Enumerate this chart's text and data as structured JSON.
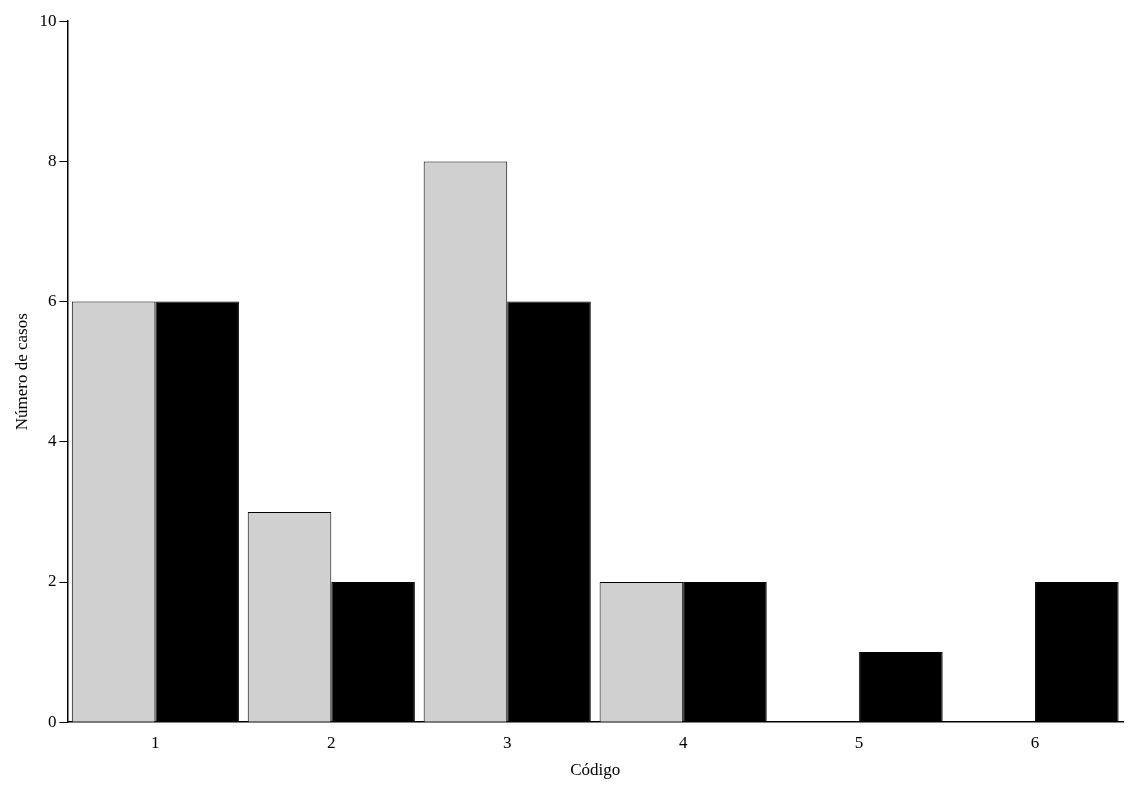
{
  "chart_data": {
    "type": "bar",
    "xlabel": "Código",
    "ylabel": "Número de casos",
    "categories": [
      "1",
      "2",
      "3",
      "4",
      "5",
      "6"
    ],
    "series": [
      {
        "color": "#d0d0d0",
        "values": [
          6,
          3,
          8,
          2,
          0,
          0
        ]
      },
      {
        "color": "#000000",
        "values": [
          6,
          2,
          6,
          2,
          1,
          2
        ]
      }
    ],
    "ylim": [
      0,
      10
    ],
    "yticks": [
      0,
      2,
      4,
      6,
      8,
      10
    ],
    "grid": false,
    "legend": false
  }
}
